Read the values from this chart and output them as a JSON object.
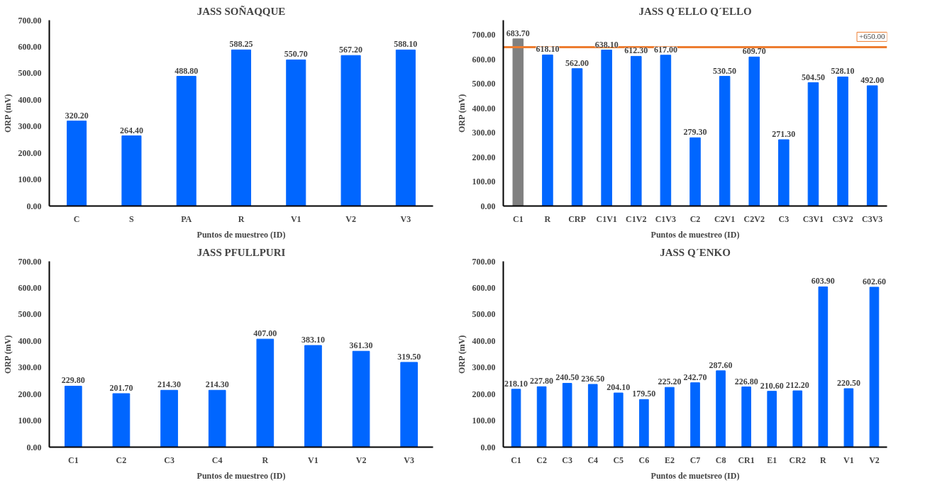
{
  "chart_data": [
    {
      "type": "bar",
      "title": "JASS SOÑAQQUE",
      "xlabel": "Puntos de muestreo (ID)",
      "ylabel": "ORP (mV)",
      "categories": [
        "C",
        "S",
        "PA",
        "R",
        "V1",
        "V2",
        "V3"
      ],
      "series": [
        {
          "color": "#0066ff",
          "values": [
            320.2,
            264.4,
            488.8,
            588.25,
            550.7,
            567.2,
            588.1
          ],
          "value_labels": [
            "320.20",
            "264.40",
            "488.80",
            "588.25",
            "550.70",
            "567.20",
            "588.10"
          ]
        }
      ],
      "ylim": [
        0,
        700
      ],
      "yticks": [
        {
          "value": 0,
          "label": "0.00"
        },
        {
          "value": 100,
          "label": "100.00"
        },
        {
          "value": 200,
          "label": "200.00"
        },
        {
          "value": 300,
          "label": "300.00"
        },
        {
          "value": 400,
          "label": "400.00"
        },
        {
          "value": 500,
          "label": "500.00"
        },
        {
          "value": 600,
          "label": "600.00"
        },
        {
          "value": 700,
          "label": "700.00"
        }
      ],
      "grid": false
    },
    {
      "type": "bar",
      "title": "JASS Q´ELLO Q´ELLO",
      "xlabel": "Puntos de muestreo (ID)",
      "ylabel": "ORP (mV)",
      "categories": [
        "C1",
        "R",
        "CRP",
        "C1V1",
        "C1V2",
        "C1V3",
        "C2",
        "C2V1",
        "C2V2",
        "C3",
        "C3V1",
        "C3V2",
        "C3V3"
      ],
      "series": [
        {
          "colors": [
            "#808080",
            "#0066ff",
            "#0066ff",
            "#0066ff",
            "#0066ff",
            "#0066ff",
            "#0066ff",
            "#0066ff",
            "#0066ff",
            "#0066ff",
            "#0066ff",
            "#0066ff",
            "#0066ff"
          ],
          "values": [
            683.7,
            618.1,
            562.0,
            638.1,
            612.3,
            617.0,
            279.3,
            530.5,
            609.7,
            271.3,
            504.5,
            528.1,
            492.0
          ],
          "value_labels": [
            "683.70",
            "618.10",
            "562.00",
            "638.10",
            "612.30",
            "617.00",
            "279.30",
            "530.50",
            "609.70",
            "271.30",
            "504.50",
            "528.10",
            "492.00"
          ]
        }
      ],
      "ylim": [
        0,
        760
      ],
      "yticks": [
        {
          "value": 0,
          "label": "0.00"
        },
        {
          "value": 100,
          "label": "100.00"
        },
        {
          "value": 200,
          "label": "200.00"
        },
        {
          "value": 300,
          "label": "300.00"
        },
        {
          "value": 400,
          "label": "400.00"
        },
        {
          "value": 500,
          "label": "500.00"
        },
        {
          "value": 600,
          "label": "600.00"
        },
        {
          "value": 700,
          "label": "700.00"
        }
      ],
      "ref_lines": [
        {
          "axis": "y",
          "value": 650,
          "label": "+650.00",
          "color": "#ed7d31"
        }
      ],
      "grid": false
    },
    {
      "type": "bar",
      "title": "JASS PFULLPURI",
      "xlabel": "Puntos de muestreo (ID)",
      "ylabel": "ORP (mV)",
      "categories": [
        "C1",
        "C2",
        "C3",
        "C4",
        "R",
        "V1",
        "V2",
        "V3"
      ],
      "series": [
        {
          "color": "#0066ff",
          "values": [
            229.8,
            201.7,
            214.3,
            214.3,
            407.0,
            383.1,
            361.3,
            319.5
          ],
          "value_labels": [
            "229.80",
            "201.70",
            "214.30",
            "214.30",
            "407.00",
            "383.10",
            "361.30",
            "319.50"
          ]
        }
      ],
      "ylim": [
        0,
        700
      ],
      "yticks": [
        {
          "value": 0,
          "label": "0.00"
        },
        {
          "value": 100,
          "label": "100.00"
        },
        {
          "value": 200,
          "label": "200.00"
        },
        {
          "value": 300,
          "label": "300.00"
        },
        {
          "value": 400,
          "label": "400.00"
        },
        {
          "value": 500,
          "label": "500.00"
        },
        {
          "value": 600,
          "label": "600.00"
        },
        {
          "value": 700,
          "label": "700.00"
        }
      ],
      "grid": false
    },
    {
      "type": "bar",
      "title": "JASS Q´ENKO",
      "xlabel": "Puntos de muetsreo (ID)",
      "ylabel": "ORP (mV)",
      "categories": [
        "C1",
        "C2",
        "C3",
        "C4",
        "C5",
        "C6",
        "E2",
        "C7",
        "C8",
        "CR1",
        "E1",
        "CR2",
        "R",
        "V1",
        "V2"
      ],
      "series": [
        {
          "color": "#0066ff",
          "values": [
            218.1,
            227.8,
            240.5,
            236.5,
            204.1,
            179.5,
            225.2,
            242.7,
            287.6,
            226.8,
            210.6,
            212.2,
            603.9,
            220.5,
            602.6
          ],
          "value_labels": [
            "218.10",
            "227.80",
            "240.50",
            "236.50",
            "204.10",
            "179.50",
            "225.20",
            "242.70",
            "287.60",
            "226.80",
            "210.60",
            "212.20",
            "603.90",
            "220.50",
            "602.60"
          ]
        }
      ],
      "ylim": [
        0,
        700
      ],
      "yticks": [
        {
          "value": 0,
          "label": "0.00"
        },
        {
          "value": 100,
          "label": "100.00"
        },
        {
          "value": 200,
          "label": "200.00"
        },
        {
          "value": 300,
          "label": "300.00"
        },
        {
          "value": 400,
          "label": "400.00"
        },
        {
          "value": 500,
          "label": "500.00"
        },
        {
          "value": 600,
          "label": "600.00"
        },
        {
          "value": 700,
          "label": "700.00"
        }
      ],
      "grid": false
    }
  ]
}
